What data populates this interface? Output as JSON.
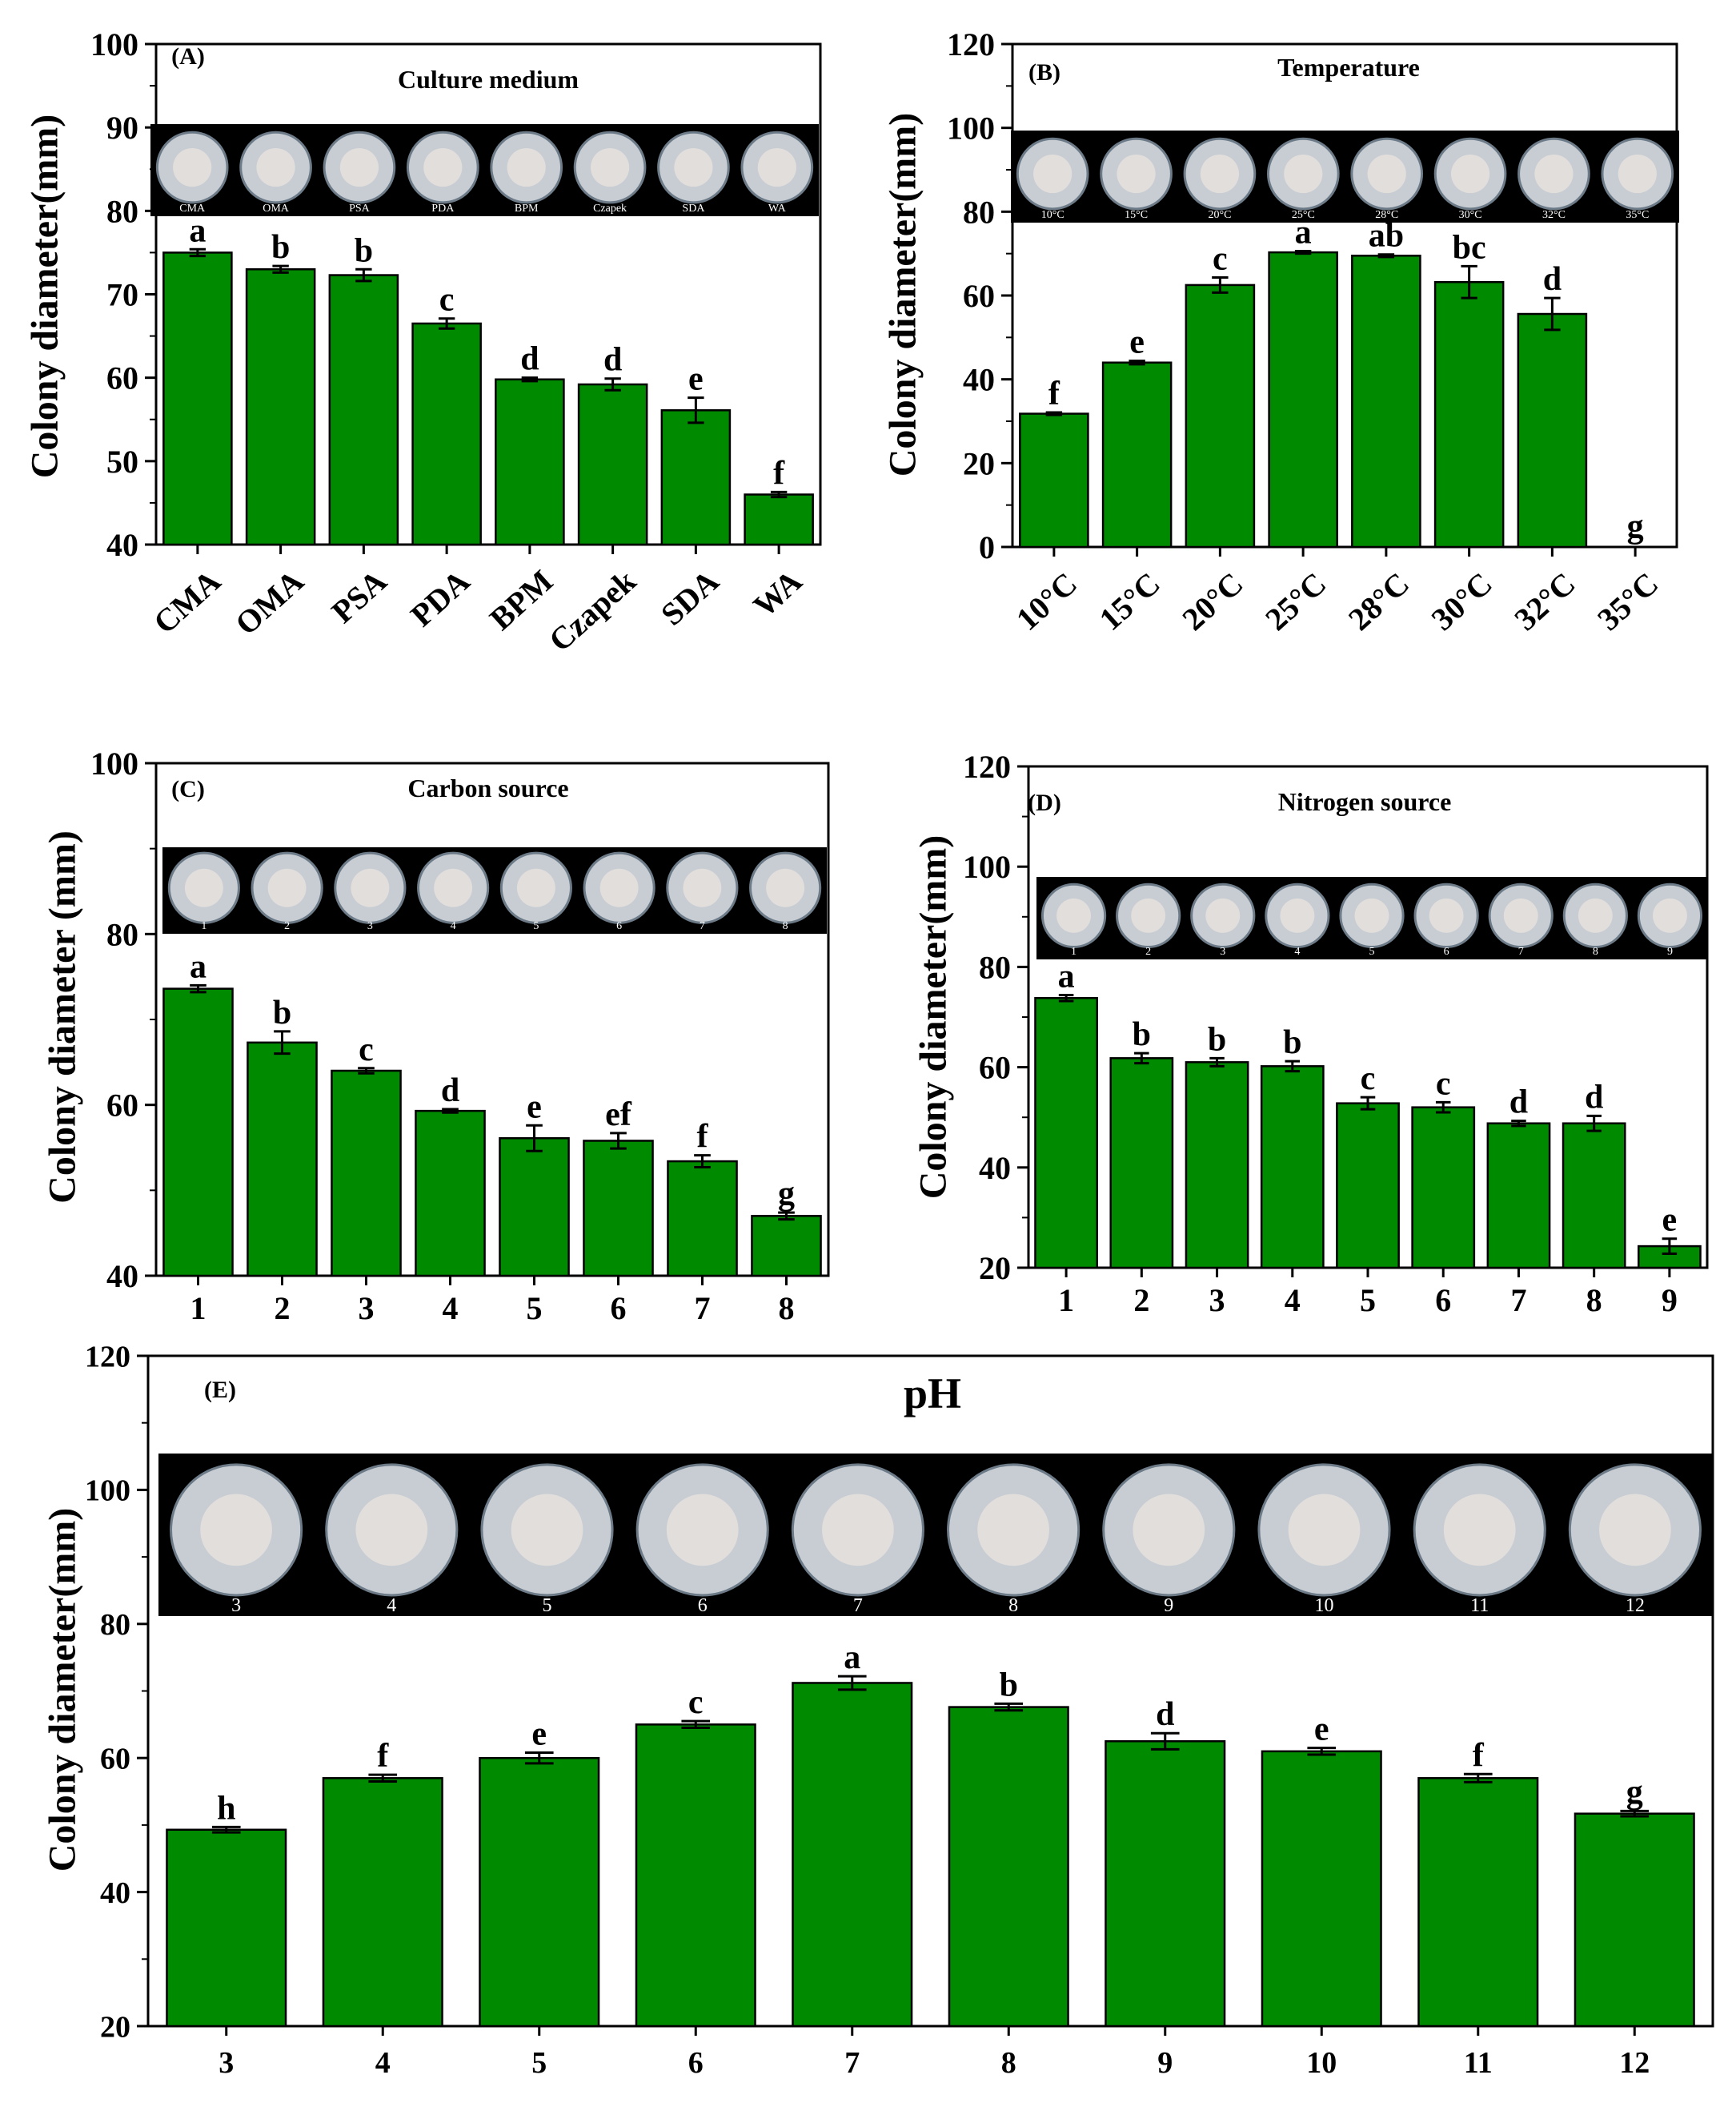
{
  "colors": {
    "bar": "#008a00",
    "bar_edge": "#000000",
    "photo_strip": "#000000",
    "dish_light": "#c7cdd3"
  },
  "chart_data": [
    {
      "type": "bar",
      "panel_label": "(A)",
      "title": "Culture medium",
      "ylabel": "Colony diameter(mm)",
      "xlabel": "",
      "ylim": [
        40,
        100
      ],
      "yticks": [
        "40",
        "50",
        "60",
        "70",
        "80",
        "90",
        "100"
      ],
      "categories": [
        "CMA",
        "OMA",
        "PSA",
        "PDA",
        "BPM",
        "Czapek",
        "SDA",
        "WA"
      ],
      "values": [
        75.0,
        73.0,
        72.3,
        66.5,
        59.8,
        59.2,
        56.1,
        46.0
      ],
      "errors": [
        0.4,
        0.4,
        0.7,
        0.6,
        0.2,
        0.7,
        1.5,
        0.3
      ],
      "significance": [
        "a",
        "b",
        "b",
        "c",
        "d",
        "d",
        "e",
        "f"
      ],
      "photo_labels": [
        "CMA",
        "OMA",
        "PSA",
        "PDA",
        "BPM",
        "Czapek",
        "SDA",
        "WA"
      ],
      "x_rotated": true
    },
    {
      "type": "bar",
      "panel_label": "(B)",
      "title": "Temperature",
      "ylabel": "Colony diameter(mm)",
      "xlabel": "",
      "ylim": [
        0,
        120
      ],
      "yticks": [
        "0",
        "20",
        "40",
        "60",
        "80",
        "100",
        "120"
      ],
      "categories": [
        "10°C",
        "15°C",
        "20°C",
        "25°C",
        "28°C",
        "30°C",
        "32°C",
        "35°C"
      ],
      "values": [
        31.8,
        44.0,
        62.5,
        70.3,
        69.5,
        63.2,
        55.6,
        0
      ],
      "errors": [
        0.3,
        0.4,
        1.8,
        0.3,
        0.3,
        3.8,
        3.8,
        0
      ],
      "significance": [
        "f",
        "e",
        "c",
        "a",
        "ab",
        "bc",
        "d",
        "g"
      ],
      "photo_labels": [
        "10°C",
        "15°C",
        "20°C",
        "25°C",
        "28°C",
        "30°C",
        "32°C",
        "35°C"
      ],
      "x_rotated": true
    },
    {
      "type": "bar",
      "panel_label": "(C)",
      "title": "Carbon source",
      "ylabel": "Colony diameter (mm)",
      "xlabel": "",
      "ylim": [
        40,
        100
      ],
      "yticks": [
        "40",
        "60",
        "80",
        "100"
      ],
      "categories": [
        "1",
        "2",
        "3",
        "4",
        "5",
        "6",
        "7",
        "8"
      ],
      "values": [
        73.6,
        67.3,
        64.0,
        59.3,
        56.1,
        55.8,
        53.4,
        47.0
      ],
      "errors": [
        0.4,
        1.3,
        0.3,
        0.2,
        1.5,
        0.9,
        0.7,
        0.4
      ],
      "significance": [
        "a",
        "b",
        "c",
        "d",
        "e",
        "ef",
        "f",
        "g"
      ],
      "photo_labels": [
        "1",
        "2",
        "3",
        "4",
        "5",
        "6",
        "7",
        "8"
      ],
      "x_rotated": false
    },
    {
      "type": "bar",
      "panel_label": "(D)",
      "title": "Nitrogen source",
      "ylabel": "Colony diameter(mm)",
      "xlabel": "",
      "ylim": [
        20,
        120
      ],
      "yticks": [
        "20",
        "40",
        "60",
        "80",
        "100",
        "120"
      ],
      "categories": [
        "1",
        "2",
        "3",
        "4",
        "5",
        "6",
        "7",
        "8",
        "9"
      ],
      "values": [
        73.8,
        61.8,
        61.0,
        60.2,
        52.8,
        52.0,
        48.8,
        48.8,
        24.3
      ],
      "errors": [
        0.6,
        1.0,
        0.8,
        1.0,
        1.2,
        1.0,
        0.5,
        1.5,
        1.5
      ],
      "significance": [
        "a",
        "b",
        "b",
        "b",
        "c",
        "c",
        "d",
        "d",
        "e"
      ],
      "photo_labels": [
        "1",
        "2",
        "3",
        "4",
        "5",
        "6",
        "7",
        "8",
        "9"
      ],
      "x_rotated": false
    },
    {
      "type": "bar",
      "panel_label": "(E)",
      "title": "pH",
      "ylabel": "Colony diameter(mm)",
      "xlabel": "",
      "ylim": [
        20,
        120
      ],
      "yticks": [
        "20",
        "40",
        "60",
        "80",
        "100",
        "120"
      ],
      "categories": [
        "3",
        "4",
        "5",
        "6",
        "7",
        "8",
        "9",
        "10",
        "11",
        "12"
      ],
      "values": [
        49.3,
        57.0,
        60.0,
        65.0,
        71.2,
        67.6,
        62.5,
        61.0,
        57.0,
        51.7
      ],
      "errors": [
        0.4,
        0.5,
        0.8,
        0.5,
        1.0,
        0.5,
        1.2,
        0.5,
        0.6,
        0.4
      ],
      "significance": [
        "h",
        "f",
        "e",
        "c",
        "a",
        "b",
        "d",
        "e",
        "f",
        "g"
      ],
      "photo_labels": [
        "3",
        "4",
        "5",
        "6",
        "7",
        "8",
        "9",
        "10",
        "11",
        "12"
      ],
      "x_rotated": false
    }
  ]
}
